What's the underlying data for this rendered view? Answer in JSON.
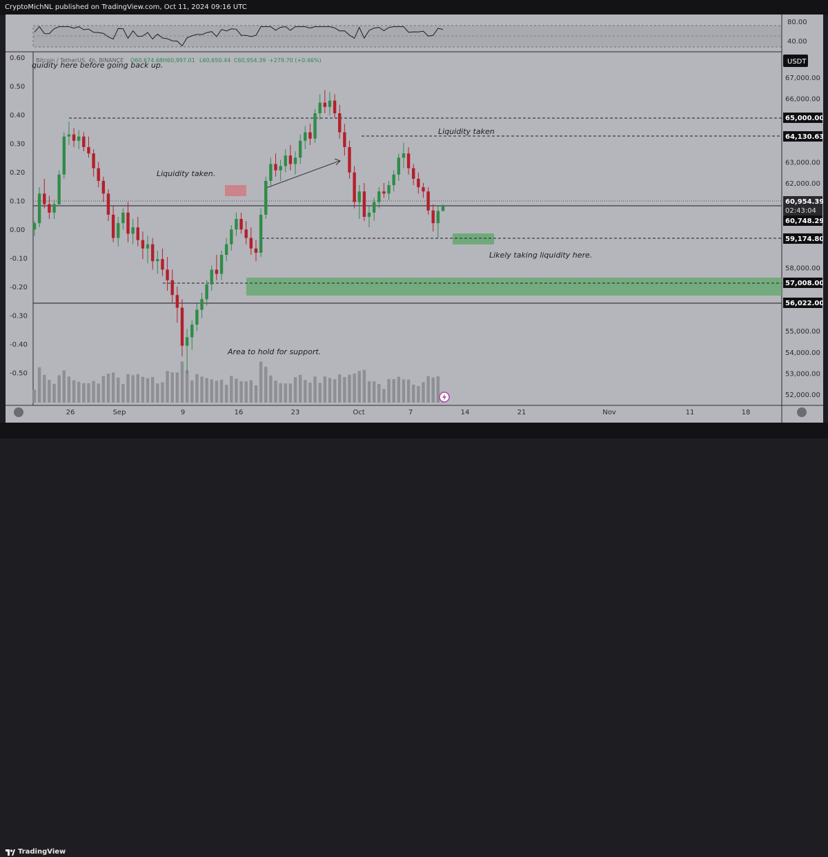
{
  "header": {
    "published": "CryptoMichNL published on TradingView.com, Oct 11, 2024 09:16 UTC"
  },
  "footer": {
    "brand": "TradingView"
  },
  "symbol_line": {
    "name": "Bitcoin / TetherUS, 4h, BINANCE",
    "open": "O60,674.68",
    "high": "H60,997.01",
    "low": "L60,650.44",
    "close": "C60,954.39",
    "change": "+279.70 (+0.46%)"
  },
  "currency_button": "USDT",
  "rsi": {
    "level_hi": "80.00",
    "level_lo": "40.00"
  },
  "left_axis": [
    "0.60",
    "0.50",
    "0.40",
    "0.30",
    "0.20",
    "0.10",
    "0.00",
    "-0.10",
    "-0.20",
    "-0.30",
    "-0.40",
    "-0.50"
  ],
  "right_axis": [
    "67,000.00",
    "66,000.00",
    "63,000.00",
    "62,000.00",
    "58,000.00",
    "55,000.00",
    "54,000.00",
    "53,000.00",
    "52,000.00"
  ],
  "price_labels": {
    "p65000": "65,000.00",
    "p64130": "64,130.63",
    "p_current": "60,954.39",
    "countdown": "02:43:04",
    "p60748": "60,748.29",
    "p59174": "59,174.80",
    "p57008": "57,008.00",
    "p56022": "56,022.00"
  },
  "annotations": {
    "top_left": "quidity here before going back up.",
    "liq_taken_left": "Liquidity taken.",
    "liq_taken_right": "Liquidity taken",
    "likely": "Likely taking liquidity here.",
    "area": "Area to hold for support."
  },
  "time_axis": [
    "26",
    "Sep",
    "9",
    "16",
    "23",
    "Oct",
    "7",
    "14",
    "21",
    "Nov",
    "11",
    "18"
  ],
  "colors": {
    "background": "#b5b5bc",
    "up": "#2f8c47",
    "down": "#b3202a",
    "zone_green": "#5fa86a",
    "zone_red": "#d07a82",
    "axis_text": "#2a2a2e",
    "label_bg": "#0f0f12"
  },
  "chart_data": {
    "type": "candlestick",
    "title": "Bitcoin / TetherUS, 4h, BINANCE",
    "yaxis_range": [
      51400,
      67600
    ],
    "candles": [
      [
        59800,
        60200,
        59500,
        60100
      ],
      [
        60100,
        61800,
        59900,
        61500
      ],
      [
        61500,
        62200,
        60800,
        61000
      ],
      [
        61000,
        61400,
        60300,
        60600
      ],
      [
        60600,
        61200,
        60300,
        61000
      ],
      [
        61000,
        62600,
        60900,
        62400
      ],
      [
        62400,
        64400,
        62200,
        64200
      ],
      [
        64200,
        64900,
        63800,
        64300
      ],
      [
        64300,
        64600,
        63700,
        64000
      ],
      [
        64000,
        64500,
        63600,
        64200
      ],
      [
        64200,
        64400,
        63500,
        63700
      ],
      [
        63700,
        64200,
        63200,
        63400
      ],
      [
        63400,
        63600,
        62300,
        62700
      ],
      [
        62700,
        63000,
        61800,
        62100
      ],
      [
        62100,
        62300,
        61100,
        61500
      ],
      [
        61500,
        61700,
        60200,
        60500
      ],
      [
        60500,
        60900,
        59200,
        59400
      ],
      [
        59400,
        60400,
        59000,
        60100
      ],
      [
        60100,
        60800,
        59800,
        60600
      ],
      [
        60600,
        61100,
        59200,
        59600
      ],
      [
        59600,
        60300,
        59100,
        59900
      ],
      [
        59900,
        60400,
        59000,
        59300
      ],
      [
        59300,
        59700,
        58400,
        58900
      ],
      [
        58900,
        59500,
        58200,
        59100
      ],
      [
        59100,
        59400,
        57900,
        58300
      ],
      [
        58300,
        58800,
        57700,
        58400
      ],
      [
        58400,
        58900,
        57600,
        57900
      ],
      [
        57900,
        58500,
        56900,
        57400
      ],
      [
        57400,
        57900,
        56300,
        56700
      ],
      [
        56700,
        57100,
        55400,
        56100
      ],
      [
        56100,
        56500,
        53800,
        54300
      ],
      [
        54300,
        55100,
        53000,
        54700
      ],
      [
        54700,
        55500,
        54100,
        55300
      ],
      [
        55300,
        56300,
        55000,
        56000
      ],
      [
        56000,
        56800,
        55600,
        56500
      ],
      [
        56500,
        57400,
        56200,
        57200
      ],
      [
        57200,
        58100,
        56900,
        57900
      ],
      [
        57900,
        58600,
        57400,
        57700
      ],
      [
        57700,
        58800,
        57400,
        58600
      ],
      [
        58600,
        59400,
        58300,
        59100
      ],
      [
        59100,
        60000,
        58800,
        59800
      ],
      [
        59800,
        60600,
        59500,
        60300
      ],
      [
        60300,
        60600,
        59600,
        59800
      ],
      [
        59800,
        60200,
        59100,
        59400
      ],
      [
        59400,
        59900,
        58600,
        58900
      ],
      [
        58900,
        59300,
        58300,
        58700
      ],
      [
        58700,
        60800,
        58500,
        60500
      ],
      [
        60500,
        62300,
        60300,
        62100
      ],
      [
        62100,
        63200,
        61800,
        62900
      ],
      [
        62900,
        63400,
        62300,
        62600
      ],
      [
        62600,
        63100,
        62100,
        62800
      ],
      [
        62800,
        63600,
        62500,
        63300
      ],
      [
        63300,
        63800,
        62600,
        62900
      ],
      [
        62900,
        63500,
        62400,
        63200
      ],
      [
        63200,
        64300,
        62900,
        64000
      ],
      [
        64000,
        64700,
        63600,
        64400
      ],
      [
        64400,
        64800,
        63800,
        64100
      ],
      [
        64100,
        65500,
        63900,
        65300
      ],
      [
        65300,
        66200,
        65000,
        65800
      ],
      [
        65800,
        66400,
        65300,
        65600
      ],
      [
        65600,
        66300,
        65200,
        65900
      ],
      [
        65900,
        66200,
        65100,
        65300
      ],
      [
        65300,
        65700,
        64100,
        64400
      ],
      [
        64400,
        64800,
        63300,
        63700
      ],
      [
        63700,
        64000,
        62200,
        62500
      ],
      [
        62500,
        62800,
        60800,
        61100
      ],
      [
        61100,
        61900,
        60300,
        61600
      ],
      [
        61600,
        62000,
        60200,
        60400
      ],
      [
        60400,
        60900,
        59900,
        60600
      ],
      [
        60600,
        61300,
        60200,
        61100
      ],
      [
        61100,
        61800,
        60800,
        61600
      ],
      [
        61600,
        62000,
        61300,
        61500
      ],
      [
        61500,
        62100,
        61200,
        61900
      ],
      [
        61900,
        62600,
        61600,
        62400
      ],
      [
        62400,
        63400,
        62100,
        63200
      ],
      [
        63200,
        63900,
        62700,
        63400
      ],
      [
        63400,
        63700,
        62400,
        62700
      ],
      [
        62700,
        62900,
        61900,
        62200
      ],
      [
        62200,
        62500,
        61500,
        61800
      ],
      [
        61800,
        62000,
        61300,
        61600
      ],
      [
        61600,
        61800,
        60500,
        60700
      ],
      [
        60700,
        61000,
        59700,
        60100
      ],
      [
        60100,
        60900,
        59400,
        60675
      ],
      [
        60675,
        60997,
        60650,
        60954
      ]
    ],
    "levels": [
      65000,
      64130.63,
      60954.39,
      60748.29,
      59174.8,
      57008.0,
      56022.0
    ],
    "support_zone": [
      56400,
      57200
    ],
    "rsi_levels": [
      80,
      40
    ]
  }
}
